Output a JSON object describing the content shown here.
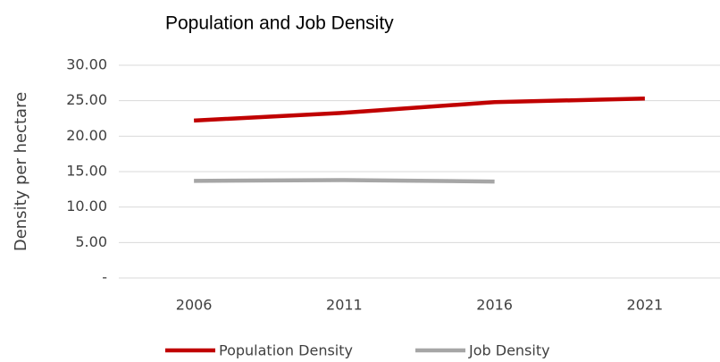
{
  "chart_data": {
    "type": "line",
    "title": "Population and Job Density",
    "y_label": "Density per hectare",
    "categories": [
      "2006",
      "2011",
      "2016",
      "2021"
    ],
    "series": [
      {
        "name": "Population Density",
        "color": "#c00000",
        "values": [
          22.2,
          23.3,
          24.8,
          25.3
        ]
      },
      {
        "name": "Job Density",
        "color": "#a6a6a6",
        "values": [
          13.7,
          13.8,
          13.6,
          null
        ]
      }
    ],
    "ylim": [
      0,
      30
    ],
    "yticks": [
      {
        "value": 0,
        "label": "-"
      },
      {
        "value": 5,
        "label": "5.00"
      },
      {
        "value": 10,
        "label": "10.00"
      },
      {
        "value": 15,
        "label": "15.00"
      },
      {
        "value": 20,
        "label": "20.00"
      },
      {
        "value": 25,
        "label": "25.00"
      },
      {
        "value": 30,
        "label": "30.00"
      }
    ],
    "grid": true,
    "legend": "bottom"
  }
}
